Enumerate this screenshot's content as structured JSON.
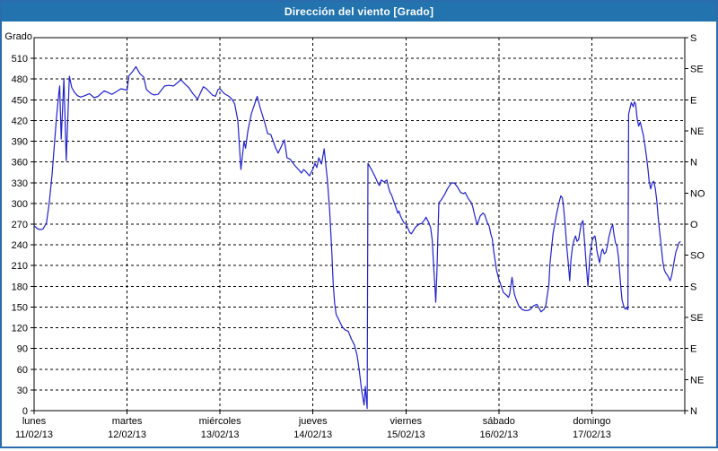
{
  "window": {
    "title": "Dirección del viento [Grado]"
  },
  "colors": {
    "titlebar_bg": "#2273ae",
    "titlebar_text": "#ffffff",
    "window_border": "#2a6cad",
    "plot_background": "#ffffff",
    "grid": "#000000",
    "axis": "#000000",
    "line": "#2121ce"
  },
  "chart_data": {
    "type": "line",
    "title": "Dirección del viento [Grado]",
    "ylabel": "Grado",
    "ylim": [
      0,
      540
    ],
    "y_left_tick_step": 30,
    "y_left_ticks": [
      0,
      30,
      60,
      90,
      120,
      150,
      180,
      210,
      240,
      270,
      300,
      330,
      360,
      390,
      420,
      450,
      480,
      510
    ],
    "y_right_ticks": [
      {
        "deg": 0,
        "label": "N"
      },
      {
        "deg": 45,
        "label": "NE"
      },
      {
        "deg": 90,
        "label": "E"
      },
      {
        "deg": 135,
        "label": "SE"
      },
      {
        "deg": 180,
        "label": "S"
      },
      {
        "deg": 225,
        "label": "SO"
      },
      {
        "deg": 270,
        "label": "O"
      },
      {
        "deg": 315,
        "label": "NO"
      },
      {
        "deg": 360,
        "label": "N"
      },
      {
        "deg": 405,
        "label": "NE"
      },
      {
        "deg": 450,
        "label": "E"
      },
      {
        "deg": 495,
        "label": "SE"
      },
      {
        "deg": 540,
        "label": "S"
      }
    ],
    "xlim_hours": [
      0,
      168
    ],
    "x_day_labels": [
      {
        "name": "lunes",
        "date": "11/02/13"
      },
      {
        "name": "martes",
        "date": "12/02/13"
      },
      {
        "name": "miércoles",
        "date": "13/02/13"
      },
      {
        "name": "jueves",
        "date": "14/02/13"
      },
      {
        "name": "viernes",
        "date": "15/02/13"
      },
      {
        "name": "sábado",
        "date": "16/02/13"
      },
      {
        "name": "domingo",
        "date": "17/02/13"
      }
    ],
    "grid": true,
    "legend": false,
    "series": [
      {
        "name": "Dirección del viento [Grado]",
        "color": "#2121ce",
        "points_hours_degrees": [
          [
            0,
            268
          ],
          [
            0.7,
            264
          ],
          [
            1.5,
            262
          ],
          [
            2.3,
            263
          ],
          [
            3.2,
            272
          ],
          [
            3.9,
            300
          ],
          [
            4.6,
            340
          ],
          [
            5.1,
            375
          ],
          [
            5.8,
            425
          ],
          [
            6.3,
            455
          ],
          [
            6.6,
            470
          ],
          [
            7.0,
            393
          ],
          [
            7.7,
            481
          ],
          [
            8.3,
            362
          ],
          [
            9.1,
            484
          ],
          [
            9.7,
            468
          ],
          [
            10.4,
            461
          ],
          [
            11.2,
            456
          ],
          [
            12.0,
            454
          ],
          [
            13.1,
            456
          ],
          [
            14.3,
            459
          ],
          [
            15.5,
            453
          ],
          [
            16.5,
            455
          ],
          [
            18.1,
            463
          ],
          [
            20.1,
            458
          ],
          [
            22.4,
            466
          ],
          [
            24.0,
            464
          ],
          [
            24.5,
            485
          ],
          [
            25.3,
            490
          ],
          [
            26.3,
            498
          ],
          [
            27.3,
            488
          ],
          [
            28.3,
            483
          ],
          [
            29.0,
            465
          ],
          [
            30.2,
            459
          ],
          [
            31.0,
            457
          ],
          [
            32.0,
            458
          ],
          [
            33.0,
            465
          ],
          [
            33.7,
            470
          ],
          [
            34.8,
            471
          ],
          [
            36.0,
            470
          ],
          [
            37.9,
            479
          ],
          [
            38.9,
            473
          ],
          [
            39.9,
            468
          ],
          [
            41.0,
            459
          ],
          [
            42.2,
            451
          ],
          [
            43.7,
            469
          ],
          [
            44.5,
            466
          ],
          [
            46.0,
            457
          ],
          [
            46.8,
            455
          ],
          [
            47.5,
            465
          ],
          [
            48.0,
            466
          ],
          [
            49.1,
            459
          ],
          [
            50.3,
            455
          ],
          [
            51.1,
            451
          ],
          [
            51.8,
            444
          ],
          [
            52.6,
            420
          ],
          [
            53.4,
            349
          ],
          [
            54.2,
            390
          ],
          [
            54.6,
            380
          ],
          [
            55.2,
            405
          ],
          [
            56.1,
            430
          ],
          [
            57.6,
            455
          ],
          [
            58.4,
            438
          ],
          [
            59.6,
            416
          ],
          [
            60.3,
            401
          ],
          [
            61.1,
            400
          ],
          [
            62.3,
            381
          ],
          [
            63.0,
            373
          ],
          [
            63.7,
            381
          ],
          [
            64.6,
            392
          ],
          [
            65.3,
            366
          ],
          [
            66.1,
            364
          ],
          [
            67.3,
            355
          ],
          [
            68.3,
            349
          ],
          [
            69.0,
            344
          ],
          [
            69.6,
            349
          ],
          [
            70.2,
            346
          ],
          [
            71.1,
            340
          ],
          [
            72.0,
            350
          ],
          [
            72.5,
            358
          ],
          [
            73.0,
            352
          ],
          [
            73.5,
            366
          ],
          [
            74.2,
            357
          ],
          [
            74.9,
            379
          ],
          [
            75.7,
            335
          ],
          [
            76.3,
            290
          ],
          [
            76.9,
            225
          ],
          [
            77.2,
            185
          ],
          [
            77.6,
            155
          ],
          [
            78.0,
            139
          ],
          [
            78.8,
            130
          ],
          [
            79.6,
            121
          ],
          [
            80.3,
            117
          ],
          [
            81.1,
            115
          ],
          [
            81.9,
            104
          ],
          [
            82.7,
            95
          ],
          [
            83.4,
            80
          ],
          [
            83.9,
            60
          ],
          [
            84.6,
            28
          ],
          [
            85.2,
            8
          ],
          [
            85.5,
            35
          ],
          [
            86.0,
            3
          ],
          [
            86.2,
            358
          ],
          [
            87.3,
            347
          ],
          [
            88.1,
            338
          ],
          [
            88.8,
            329
          ],
          [
            89.2,
            326
          ],
          [
            89.6,
            334
          ],
          [
            90.4,
            331
          ],
          [
            91.1,
            334
          ],
          [
            91.5,
            323
          ],
          [
            91.9,
            316
          ],
          [
            92.3,
            312
          ],
          [
            93.1,
            299
          ],
          [
            93.5,
            293
          ],
          [
            93.9,
            286
          ],
          [
            94.2,
            289
          ],
          [
            94.6,
            282
          ],
          [
            95.0,
            277
          ],
          [
            95.5,
            272
          ],
          [
            96.0,
            270
          ],
          [
            97.0,
            258
          ],
          [
            97.4,
            256
          ],
          [
            98.5,
            266
          ],
          [
            99.4,
            270
          ],
          [
            100.1,
            271
          ],
          [
            100.9,
            277
          ],
          [
            101.2,
            280
          ],
          [
            102.0,
            271
          ],
          [
            102.4,
            264
          ],
          [
            102.8,
            247
          ],
          [
            103.2,
            204
          ],
          [
            103.5,
            178
          ],
          [
            103.7,
            157
          ],
          [
            104.0,
            199
          ],
          [
            104.2,
            243
          ],
          [
            104.5,
            301
          ],
          [
            105.1,
            305
          ],
          [
            105.9,
            312
          ],
          [
            106.7,
            321
          ],
          [
            107.4,
            327
          ],
          [
            107.8,
            330
          ],
          [
            108.6,
            329
          ],
          [
            109.4,
            323
          ],
          [
            110.1,
            316
          ],
          [
            110.9,
            314
          ],
          [
            111.3,
            316
          ],
          [
            112.1,
            307
          ],
          [
            112.9,
            301
          ],
          [
            113.3,
            294
          ],
          [
            114.0,
            277
          ],
          [
            114.4,
            269
          ],
          [
            115.2,
            282
          ],
          [
            115.9,
            286
          ],
          [
            116.3,
            284
          ],
          [
            117.1,
            271
          ],
          [
            117.5,
            267
          ],
          [
            117.9,
            256
          ],
          [
            118.3,
            249
          ],
          [
            118.7,
            230
          ],
          [
            119.4,
            203
          ],
          [
            120.0,
            190
          ],
          [
            120.5,
            182
          ],
          [
            121.2,
            171
          ],
          [
            122.0,
            167
          ],
          [
            122.5,
            164
          ],
          [
            122.8,
            169
          ],
          [
            123.4,
            193
          ],
          [
            124.0,
            169
          ],
          [
            124.4,
            162
          ],
          [
            125.1,
            152
          ],
          [
            125.9,
            147
          ],
          [
            126.7,
            145
          ],
          [
            127.5,
            145
          ],
          [
            128.2,
            147
          ],
          [
            129.0,
            152
          ],
          [
            129.8,
            154
          ],
          [
            130.5,
            147
          ],
          [
            130.9,
            143
          ],
          [
            131.7,
            147
          ],
          [
            132.1,
            152
          ],
          [
            132.9,
            182
          ],
          [
            133.2,
            213
          ],
          [
            133.6,
            235
          ],
          [
            134.0,
            257
          ],
          [
            134.4,
            269
          ],
          [
            134.8,
            282
          ],
          [
            135.1,
            290
          ],
          [
            135.6,
            303
          ],
          [
            136.0,
            311
          ],
          [
            136.4,
            308
          ],
          [
            136.7,
            295
          ],
          [
            137.1,
            269
          ],
          [
            137.5,
            238
          ],
          [
            137.9,
            215
          ],
          [
            138.3,
            188
          ],
          [
            138.6,
            217
          ],
          [
            139.0,
            238
          ],
          [
            139.4,
            247
          ],
          [
            139.8,
            253
          ],
          [
            140.2,
            245
          ],
          [
            140.6,
            248
          ],
          [
            141.0,
            262
          ],
          [
            141.3,
            271
          ],
          [
            141.7,
            275
          ],
          [
            142.2,
            238
          ],
          [
            142.6,
            208
          ],
          [
            143.0,
            180
          ],
          [
            143.2,
            199
          ],
          [
            143.5,
            225
          ],
          [
            143.8,
            236
          ],
          [
            144.1,
            247
          ],
          [
            144.5,
            251
          ],
          [
            144.8,
            253
          ],
          [
            145.1,
            243
          ],
          [
            145.3,
            232
          ],
          [
            145.7,
            221
          ],
          [
            146.0,
            214
          ],
          [
            146.3,
            225
          ],
          [
            146.6,
            232
          ],
          [
            146.8,
            234
          ],
          [
            147.2,
            227
          ],
          [
            147.6,
            229
          ],
          [
            148.0,
            238
          ],
          [
            148.4,
            251
          ],
          [
            148.8,
            260
          ],
          [
            149.1,
            266
          ],
          [
            149.4,
            269
          ],
          [
            149.7,
            256
          ],
          [
            150.1,
            243
          ],
          [
            150.5,
            238
          ],
          [
            150.9,
            221
          ],
          [
            151.2,
            199
          ],
          [
            151.5,
            178
          ],
          [
            151.8,
            160
          ],
          [
            152.2,
            152
          ],
          [
            152.6,
            147
          ],
          [
            153.0,
            149
          ],
          [
            153.3,
            146
          ],
          [
            153.5,
            429
          ],
          [
            154.2,
            446
          ],
          [
            154.7,
            440
          ],
          [
            155.0,
            447
          ],
          [
            155.3,
            444
          ],
          [
            155.7,
            423
          ],
          [
            156.1,
            412
          ],
          [
            156.5,
            418
          ],
          [
            156.9,
            408
          ],
          [
            157.3,
            399
          ],
          [
            157.7,
            384
          ],
          [
            158.1,
            368
          ],
          [
            158.5,
            349
          ],
          [
            158.8,
            332
          ],
          [
            159.2,
            321
          ],
          [
            159.6,
            330
          ],
          [
            160.0,
            332
          ],
          [
            160.4,
            321
          ],
          [
            160.8,
            303
          ],
          [
            161.1,
            282
          ],
          [
            161.5,
            260
          ],
          [
            161.9,
            238
          ],
          [
            162.3,
            217
          ],
          [
            162.7,
            204
          ],
          [
            163.1,
            199
          ],
          [
            163.4,
            197
          ],
          [
            163.8,
            193
          ],
          [
            164.2,
            188
          ],
          [
            164.6,
            195
          ],
          [
            165.0,
            208
          ],
          [
            165.4,
            221
          ],
          [
            165.7,
            230
          ],
          [
            166.1,
            236
          ],
          [
            166.5,
            243
          ],
          [
            166.9,
            245
          ]
        ]
      }
    ]
  }
}
